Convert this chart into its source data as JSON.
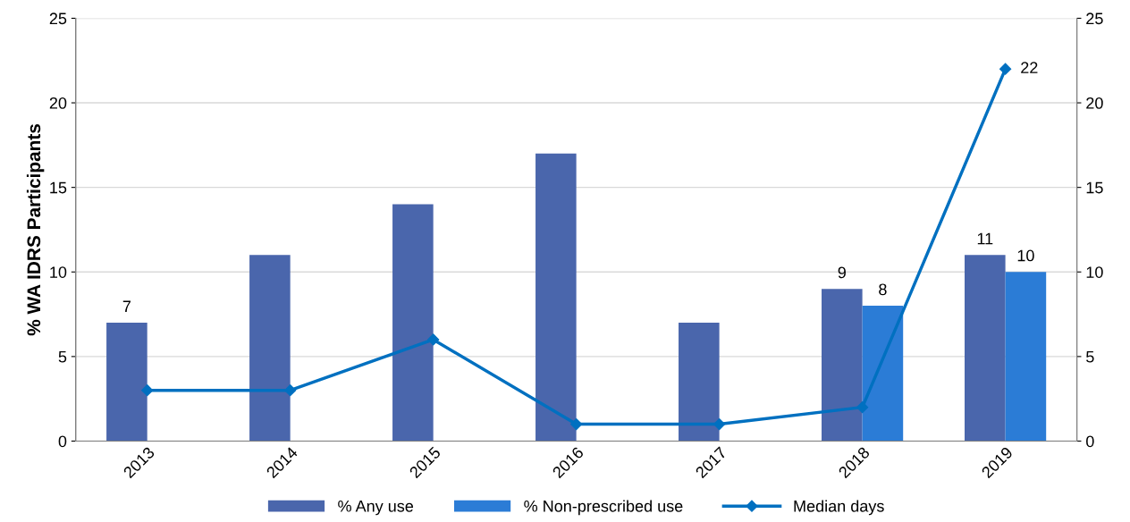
{
  "chart_data": {
    "type": "bar",
    "ylabel": "% WA IDRS Participants",
    "categories": [
      "2013",
      "2014",
      "2015",
      "2016",
      "2017",
      "2018",
      "2019"
    ],
    "series": [
      {
        "name": "% Any use",
        "color": "#4a66ac",
        "values": [
          7,
          11,
          14,
          17,
          7,
          9,
          11
        ],
        "value_labels": [
          "7",
          null,
          null,
          null,
          null,
          "9",
          "11"
        ]
      },
      {
        "name": "% Non-prescribed use",
        "color": "#2b7cd6",
        "values": [
          null,
          null,
          null,
          null,
          null,
          8,
          10
        ],
        "value_labels": [
          null,
          null,
          null,
          null,
          null,
          "8",
          "10"
        ]
      },
      {
        "name": "Median days",
        "type": "line",
        "axis": "y2",
        "color": "#0070c0",
        "marker": "diamond",
        "line_style": "solid",
        "values": [
          3,
          3,
          6,
          1,
          1,
          2,
          22
        ],
        "value_labels": [
          null,
          null,
          null,
          null,
          null,
          null,
          "22"
        ]
      }
    ],
    "ylim": [
      0,
      25
    ],
    "yticks": [
      0,
      5,
      10,
      15,
      20,
      25
    ],
    "y2lim": [
      0,
      25
    ],
    "y2ticks": [
      0,
      5,
      10,
      15,
      20,
      25
    ],
    "grid": "y",
    "legend": "bottom"
  }
}
